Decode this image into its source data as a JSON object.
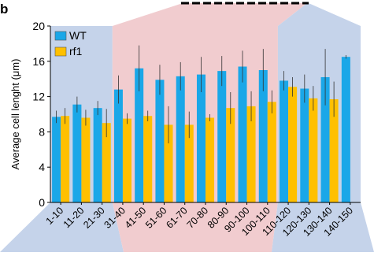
{
  "panel_label": "b",
  "chart_data": {
    "type": "bar",
    "ylabel": "Average cell lenght (μm)",
    "xlabel": "",
    "ylim": [
      0,
      20
    ],
    "yticks": [
      0,
      4,
      8,
      12,
      16,
      20
    ],
    "legend_position": "top-left",
    "error_bars": true,
    "categories": [
      "1-10",
      "11-20",
      "21-30",
      "31-40",
      "41-50",
      "51-60",
      "61-70",
      "70-80",
      "80-90",
      "90-100",
      "100-110",
      "110-120",
      "120-130",
      "130-140",
      "140-150"
    ],
    "series": [
      {
        "name": "WT",
        "color": "#1aa7e8",
        "values": [
          9.7,
          11.1,
          10.7,
          12.8,
          15.2,
          13.9,
          14.3,
          14.5,
          14.9,
          15.4,
          15.0,
          13.8,
          12.9,
          14.2,
          16.5
        ],
        "errors": [
          0.7,
          0.9,
          0.8,
          1.6,
          2.6,
          1.7,
          1.6,
          2.0,
          1.7,
          1.8,
          2.4,
          1.1,
          1.6,
          3.2,
          0.2
        ]
      },
      {
        "name": "rf1",
        "color": "#ffc000",
        "values": [
          9.8,
          9.6,
          9.0,
          9.5,
          9.8,
          8.8,
          8.8,
          9.6,
          10.7,
          10.9,
          11.4,
          13.1,
          11.8,
          11.7,
          0
        ],
        "errors": [
          0.9,
          0.9,
          1.6,
          0.6,
          0.6,
          2.1,
          1.5,
          0.4,
          1.8,
          1.7,
          1.3,
          1.1,
          1.4,
          2.0,
          0
        ]
      }
    ],
    "background_regions": [
      {
        "from": 0,
        "to": 3,
        "color": "#c5d3ea"
      },
      {
        "from": 3,
        "to": 11,
        "color": "#f1cccf"
      },
      {
        "from": 11,
        "to": 15,
        "color": "#c5d3ea"
      }
    ]
  }
}
